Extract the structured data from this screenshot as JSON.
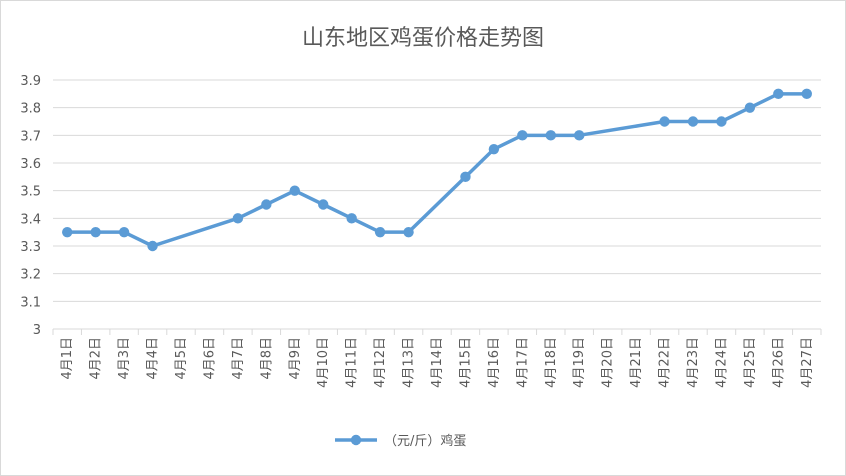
{
  "chart_data": {
    "type": "line",
    "title": "山东地区鸡蛋价格走势图",
    "xlabel": "",
    "ylabel": "",
    "ylim": [
      3,
      3.9
    ],
    "yticks": [
      "3",
      "3.1",
      "3.2",
      "3.3",
      "3.4",
      "3.5",
      "3.6",
      "3.7",
      "3.8",
      "3.9"
    ],
    "grid": true,
    "legend_position": "bottom",
    "categories": [
      "4月1日",
      "4月2日",
      "4月3日",
      "4月4日",
      "4月5日",
      "4月6日",
      "4月7日",
      "4月8日",
      "4月9日",
      "4月10日",
      "4月11日",
      "4月12日",
      "4月13日",
      "4月14日",
      "4月15日",
      "4月16日",
      "4月17日",
      "4月18日",
      "4月19日",
      "4月20日",
      "4月21日",
      "4月22日",
      "4月23日",
      "4月24日",
      "4月25日",
      "4月26日",
      "4月27日"
    ],
    "series": [
      {
        "name": "（元/斤）鸡蛋",
        "color": "#5b9bd5",
        "values": [
          3.35,
          3.35,
          3.35,
          3.3,
          null,
          null,
          3.4,
          3.45,
          3.5,
          3.45,
          3.4,
          3.35,
          3.35,
          null,
          3.55,
          3.65,
          3.7,
          3.7,
          3.7,
          null,
          null,
          3.75,
          3.75,
          3.75,
          3.8,
          3.85,
          3.85
        ]
      }
    ]
  }
}
